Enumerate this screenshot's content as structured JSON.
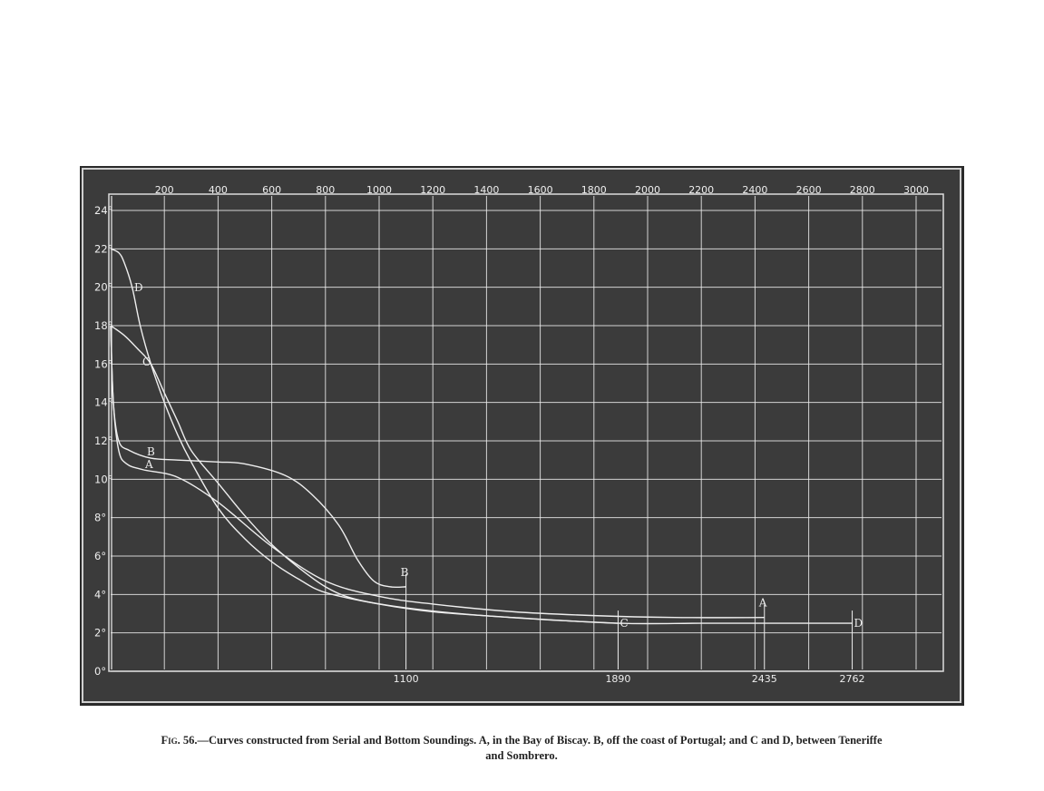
{
  "chart_data": {
    "type": "line",
    "x_ticks": [
      "200",
      "400",
      "600",
      "800",
      "1000",
      "1200",
      "1400",
      "1600",
      "1800",
      "2000",
      "2200",
      "2400",
      "2600",
      "2800",
      "3000"
    ],
    "y_ticks": [
      "0°",
      "2°",
      "4°",
      "6°",
      "8°",
      "10°",
      "12°",
      "14°",
      "16°",
      "18°",
      "20°",
      "22°",
      "24°"
    ],
    "xlim": [
      0,
      3100
    ],
    "ylim": [
      0,
      25
    ],
    "grid": true,
    "depth_markers": [
      "1100",
      "1890",
      "2435",
      "2762"
    ],
    "series": [
      {
        "name": "A",
        "end_depth": 2435,
        "points": [
          [
            0,
            18
          ],
          [
            10,
            14
          ],
          [
            30,
            11.5
          ],
          [
            60,
            10.8
          ],
          [
            120,
            10.5
          ],
          [
            250,
            10.1
          ],
          [
            400,
            8.8
          ],
          [
            600,
            6.5
          ],
          [
            800,
            4.7
          ],
          [
            1000,
            3.9
          ],
          [
            1200,
            3.5
          ],
          [
            1500,
            3.1
          ],
          [
            1800,
            2.9
          ],
          [
            2100,
            2.8
          ],
          [
            2435,
            2.8
          ]
        ]
      },
      {
        "name": "B",
        "end_depth": 1100,
        "points": [
          [
            0,
            18
          ],
          [
            10,
            14
          ],
          [
            30,
            12
          ],
          [
            70,
            11.5
          ],
          [
            150,
            11.1
          ],
          [
            250,
            11.0
          ],
          [
            400,
            10.9
          ],
          [
            500,
            10.8
          ],
          [
            650,
            10.2
          ],
          [
            750,
            9.2
          ],
          [
            850,
            7.6
          ],
          [
            920,
            5.8
          ],
          [
            980,
            4.7
          ],
          [
            1040,
            4.4
          ],
          [
            1100,
            4.4
          ]
        ]
      },
      {
        "name": "C",
        "end_depth": 1890,
        "points": [
          [
            0,
            18
          ],
          [
            50,
            17.5
          ],
          [
            100,
            16.8
          ],
          [
            150,
            16
          ],
          [
            200,
            14.5
          ],
          [
            250,
            13
          ],
          [
            300,
            11.5
          ],
          [
            400,
            9.8
          ],
          [
            500,
            8.1
          ],
          [
            600,
            6.6
          ],
          [
            700,
            5.4
          ],
          [
            800,
            4.4
          ],
          [
            900,
            3.8
          ],
          [
            1050,
            3.4
          ],
          [
            1300,
            3.0
          ],
          [
            1600,
            2.7
          ],
          [
            1890,
            2.5
          ]
        ]
      },
      {
        "name": "D",
        "end_depth": 2762,
        "points": [
          [
            0,
            22
          ],
          [
            30,
            21.8
          ],
          [
            50,
            21.3
          ],
          [
            80,
            20
          ],
          [
            110,
            18
          ],
          [
            150,
            16
          ],
          [
            200,
            14
          ],
          [
            250,
            12.3
          ],
          [
            300,
            10.9
          ],
          [
            400,
            8.5
          ],
          [
            500,
            6.9
          ],
          [
            600,
            5.7
          ],
          [
            700,
            4.8
          ],
          [
            800,
            4.1
          ],
          [
            1000,
            3.5
          ],
          [
            1200,
            3.1
          ],
          [
            1500,
            2.8
          ],
          [
            1890,
            2.5
          ],
          [
            2200,
            2.5
          ],
          [
            2500,
            2.5
          ],
          [
            2762,
            2.5
          ]
        ]
      }
    ]
  },
  "caption": {
    "fig": "Fig. 56.",
    "line1": "—Curves constructed from Serial and Bottom Soundings. A, in the Bay of Biscay. B, off the coast of Portugal; and C and D, between Teneriffe",
    "line2": "and Sombrero."
  },
  "colors": {
    "board": "#3b3b3b",
    "board_edge": "#c8c8c8",
    "chalk": "#eeeeee",
    "background": "#ffffff"
  }
}
